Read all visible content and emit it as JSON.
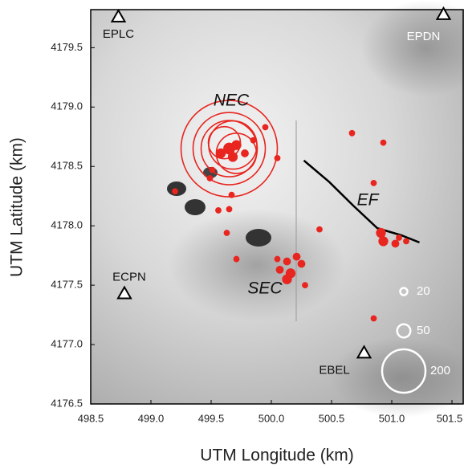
{
  "chart_data": {
    "type": "scatter",
    "xlabel": "UTM Longitude (km)",
    "ylabel": "UTM Latitude (km)",
    "xlim": [
      498.5,
      501.6
    ],
    "ylim": [
      4176.5,
      4179.82
    ],
    "xticks": [
      498.5,
      {
        "value": 499,
        "label": "499.0"
      },
      499.5,
      {
        "value": 500,
        "label": "500.0"
      },
      500.5,
      {
        "value": 501,
        "label": "501.0"
      },
      501.5
    ],
    "yticks": [
      4176.5,
      {
        "value": 4177,
        "label": "4177.0"
      },
      4177.5,
      {
        "value": 4178,
        "label": "4178.0"
      },
      4178.5,
      {
        "value": 4179,
        "label": "4179.0"
      },
      4179.5
    ],
    "annotations": [
      "NEC",
      "SEC",
      "EF"
    ],
    "series": [
      {
        "color": "#e8251f",
        "x": [
          500.67,
          500.93,
          500.85,
          500.4,
          500.91,
          500.93,
          501.06,
          501.12,
          501.03,
          500.05,
          499.95,
          499.2,
          499.56,
          499.65,
          499.67,
          499.63,
          499.71,
          500.05,
          500.13,
          500.21,
          500.25,
          500.16,
          500.13,
          500.28,
          500.85,
          500.07,
          499.65,
          499.71,
          499.58,
          499.78,
          499.68,
          499.85,
          499.51,
          499.49,
          499.65,
          499.65,
          499.65,
          499.68,
          499.71,
          499.61
        ],
        "y": [
          4178.78,
          4178.7,
          4178.36,
          4177.97,
          4177.94,
          4177.87,
          4177.9,
          4177.87,
          4177.85,
          4178.57,
          4178.83,
          4178.29,
          4178.13,
          4178.14,
          4178.26,
          4177.94,
          4177.72,
          4177.72,
          4177.7,
          4177.74,
          4177.68,
          4177.6,
          4177.55,
          4177.5,
          4177.22,
          4177.63,
          4178.65,
          4178.68,
          4178.61,
          4178.61,
          4178.58,
          4178.72,
          4178.47,
          4178.4,
          4178.65,
          4178.65,
          4178.65,
          4178.68,
          4178.61,
          4178.7
        ],
        "sizes": [
          12,
          12,
          12,
          12,
          30,
          30,
          12,
          12,
          20,
          12,
          12,
          12,
          12,
          12,
          12,
          12,
          12,
          12,
          20,
          20,
          20,
          30,
          30,
          12,
          12,
          20,
          40,
          30,
          30,
          20,
          30,
          12,
          12,
          12,
          464,
          344,
          264,
          224,
          184,
          144
        ]
      }
    ],
    "size_legend": [
      20,
      50,
      200
    ],
    "fault_line": {
      "color": "#000000",
      "x": [
        500.27,
        500.48,
        500.68,
        500.88,
        501.08,
        501.23
      ],
      "y": [
        4178.55,
        4178.37,
        4178.17,
        4177.98,
        4177.92,
        4177.86
      ]
    },
    "stations": [
      {
        "name": "EPLC",
        "x": 498.73,
        "y": 4179.76
      },
      {
        "name": "EPDN",
        "x": 501.43,
        "y": 4179.78
      },
      {
        "name": "ECPN",
        "x": 498.78,
        "y": 4177.43
      },
      {
        "name": "EBEL",
        "x": 500.77,
        "y": 4176.93
      }
    ]
  }
}
